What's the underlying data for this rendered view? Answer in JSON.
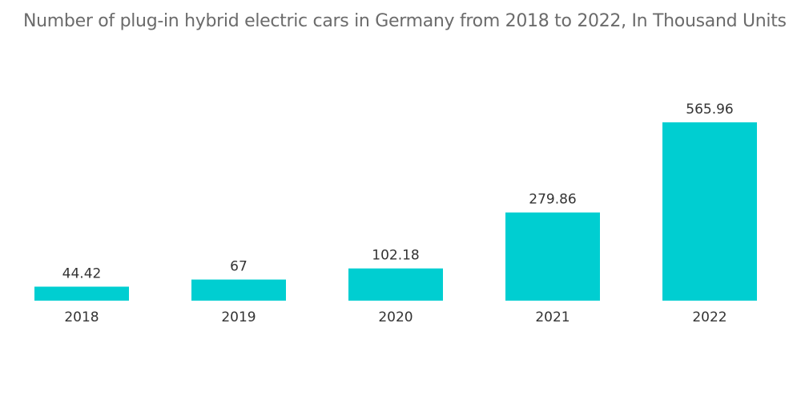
{
  "chart_data": {
    "type": "bar",
    "title": "Number of plug-in hybrid electric cars in Germany from 2018 to 2022, In Thousand Units",
    "categories": [
      "2018",
      "2019",
      "2020",
      "2021",
      "2022"
    ],
    "values": [
      44.42,
      67,
      102.18,
      279.86,
      565.96
    ],
    "value_labels": [
      "44.42",
      "67",
      "102.18",
      "279.86",
      "565.96"
    ],
    "xlabel": "",
    "ylabel": "",
    "ylim": [
      0,
      565.96
    ],
    "grid": false,
    "legend": "none",
    "bar_color": "#00CED1"
  }
}
